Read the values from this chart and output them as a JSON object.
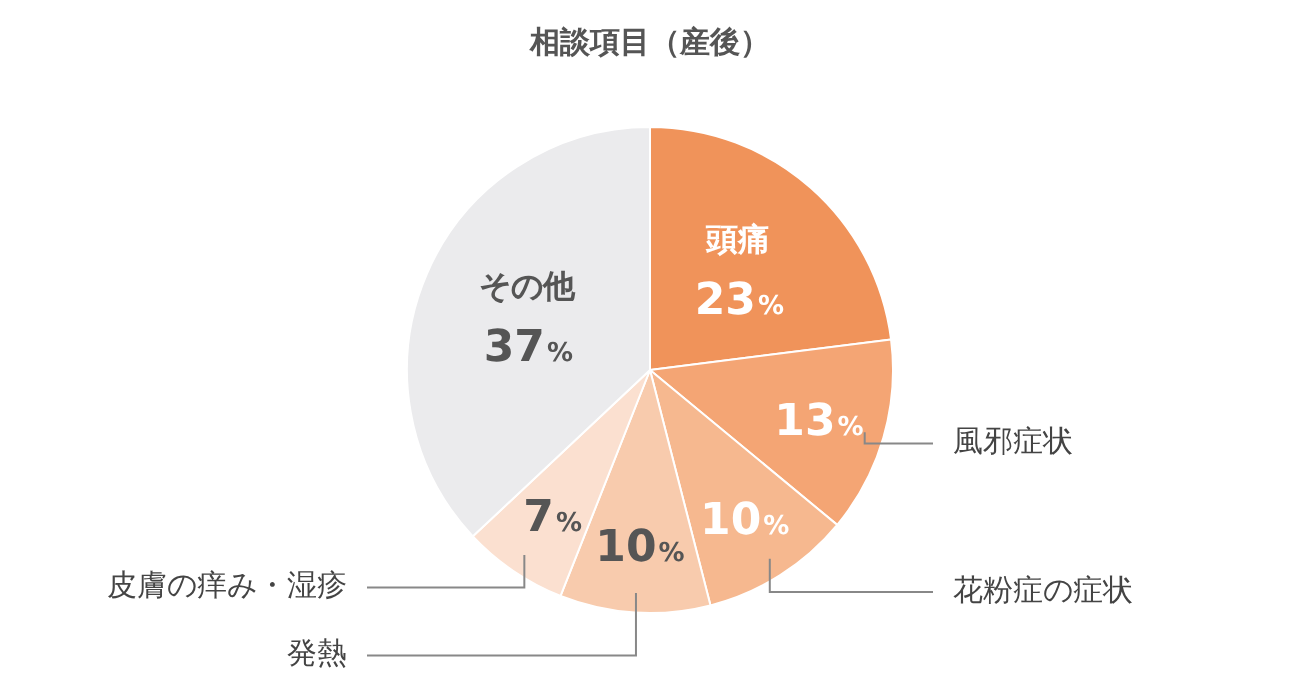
{
  "chart_data": {
    "type": "pie",
    "title": "相談項目（産後）",
    "categories": [
      "頭痛",
      "風邪症状",
      "花粉症の症状",
      "発熱",
      "皮膚の痒み・湿疹",
      "その他"
    ],
    "values": [
      23,
      13,
      10,
      10,
      7,
      37
    ],
    "colors": [
      "#f0935a",
      "#f4a574",
      "#f6b88f",
      "#f8cbad",
      "#fbe0d0",
      "#ebebed"
    ],
    "value_labels": [
      "23%",
      "13%",
      "10%",
      "10%",
      "7%",
      "37%"
    ],
    "legend": false
  }
}
